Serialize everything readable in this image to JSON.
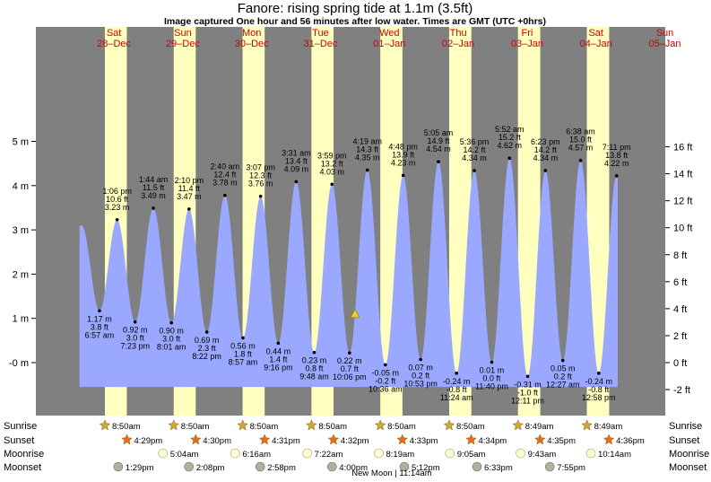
{
  "chart_data": {
    "type": "area",
    "title": "Fanore: rising  spring tide at 1.1m (3.5ft)",
    "subtitle": "Image captured One hour and 56 minutes after low water. Times are GMT (UTC +0hrs)",
    "ylim": [
      -0.75,
      5.25
    ],
    "yticks_left": [
      "-0 m",
      "1 m",
      "2 m",
      "3 m",
      "4 m",
      "5 m"
    ],
    "yticks_right": [
      "-2 ft",
      "0 ft",
      "2 ft",
      "4 ft",
      "6 ft",
      "8 ft",
      "10 ft",
      "12 ft",
      "14 ft",
      "16 ft"
    ],
    "days": [
      {
        "dow": "Sat",
        "date": "28–Dec"
      },
      {
        "dow": "Sun",
        "date": "29–Dec"
      },
      {
        "dow": "Mon",
        "date": "30–Dec"
      },
      {
        "dow": "Tue",
        "date": "31–Dec"
      },
      {
        "dow": "Wed",
        "date": "01–Jan"
      },
      {
        "dow": "Thu",
        "date": "02–Jan"
      },
      {
        "dow": "Fri",
        "date": "03–Jan"
      },
      {
        "dow": "Sat",
        "date": "04–Jan"
      },
      {
        "dow": "Sun",
        "date": "05–Jan"
      }
    ],
    "tides": [
      {
        "type": "low",
        "time": "6:57 am",
        "m": 1.17,
        "ft": "3.8 ft",
        "m_label": "1.17 m"
      },
      {
        "type": "high",
        "time": "1:06 pm",
        "m": 3.23,
        "ft": "10.6 ft",
        "m_label": "3.23 m"
      },
      {
        "type": "low",
        "time": "7:23 pm",
        "m": 0.92,
        "ft": "3.0 ft",
        "m_label": "0.92 m"
      },
      {
        "type": "high",
        "time": "1:44 am",
        "m": 3.49,
        "ft": "11.5 ft",
        "m_label": "3.49 m"
      },
      {
        "type": "low",
        "time": "8:01 am",
        "m": 0.9,
        "ft": "3.0 ft",
        "m_label": "0.90 m"
      },
      {
        "type": "high",
        "time": "2:10 pm",
        "m": 3.47,
        "ft": "11.4 ft",
        "m_label": "3.47 m"
      },
      {
        "type": "low",
        "time": "8:22 pm",
        "m": 0.69,
        "ft": "2.3 ft",
        "m_label": "0.69 m"
      },
      {
        "type": "high",
        "time": "2:40 am",
        "m": 3.78,
        "ft": "12.4 ft",
        "m_label": "3.78 m"
      },
      {
        "type": "low",
        "time": "8:57 am",
        "m": 0.56,
        "ft": "1.8 ft",
        "m_label": "0.56 m"
      },
      {
        "type": "high",
        "time": "3:07 pm",
        "m": 3.76,
        "ft": "12.3 ft",
        "m_label": "3.76 m"
      },
      {
        "type": "low",
        "time": "9:16 pm",
        "m": 0.44,
        "ft": "1.4 ft",
        "m_label": "0.44 m"
      },
      {
        "type": "high",
        "time": "3:31 am",
        "m": 4.09,
        "ft": "13.4 ft",
        "m_label": "4.09 m"
      },
      {
        "type": "low",
        "time": "9:48 am",
        "m": 0.23,
        "ft": "0.8 ft",
        "m_label": "0.23 m"
      },
      {
        "type": "high",
        "time": "3:59 pm",
        "m": 4.03,
        "ft": "13.2 ft",
        "m_label": "4.03 m"
      },
      {
        "type": "low",
        "time": "10:06 pm",
        "m": 0.22,
        "ft": "0.7 ft",
        "m_label": "0.22 m"
      },
      {
        "type": "high",
        "time": "4:19 am",
        "m": 4.35,
        "ft": "14.3 ft",
        "m_label": "4.35 m"
      },
      {
        "type": "low",
        "time": "10:36 am",
        "m": -0.05,
        "ft": "-0.2 ft",
        "m_label": "-0.05 m"
      },
      {
        "type": "high",
        "time": "4:48 pm",
        "m": 4.23,
        "ft": "13.9 ft",
        "m_label": "4.23 m"
      },
      {
        "type": "low",
        "time": "10:53 pm",
        "m": 0.07,
        "ft": "0.2 ft",
        "m_label": "0.07 m"
      },
      {
        "type": "high",
        "time": "5:05 am",
        "m": 4.54,
        "ft": "14.9 ft",
        "m_label": "4.54 m"
      },
      {
        "type": "low",
        "time": "11:24 am",
        "m": -0.24,
        "ft": "-0.8 ft",
        "m_label": "-0.24 m"
      },
      {
        "type": "high",
        "time": "5:36 pm",
        "m": 4.34,
        "ft": "14.2 ft",
        "m_label": "4.34 m"
      },
      {
        "type": "low",
        "time": "11:40 pm",
        "m": 0.01,
        "ft": "0.0 ft",
        "m_label": "0.01 m"
      },
      {
        "type": "high",
        "time": "5:52 am",
        "m": 4.62,
        "ft": "15.2 ft",
        "m_label": "4.62 m"
      },
      {
        "type": "low",
        "time": "12:11 pm",
        "m": -0.31,
        "ft": "-1.0 ft",
        "m_label": "-0.31 m"
      },
      {
        "type": "high",
        "time": "6:23 pm",
        "m": 4.34,
        "ft": "14.2 ft",
        "m_label": "4.34 m"
      },
      {
        "type": "low",
        "time": "12:27 am",
        "m": 0.05,
        "ft": "0.2 ft",
        "m_label": "0.05 m"
      },
      {
        "type": "high",
        "time": "6:38 am",
        "m": 4.57,
        "ft": "15.0 ft",
        "m_label": "4.57 m"
      },
      {
        "type": "low",
        "time": "12:58 pm",
        "m": -0.24,
        "ft": "-0.8 ft",
        "m_label": "-0.24 m"
      },
      {
        "type": "high",
        "time": "7:11 pm",
        "m": 4.22,
        "ft": "13.8 ft",
        "m_label": "4.22 m"
      }
    ],
    "current_level_m": 1.1,
    "row_labels": [
      "Sunrise",
      "Sunset",
      "Moonrise",
      "Moonset"
    ],
    "sunrise": [
      "8:50am",
      "8:50am",
      "8:50am",
      "8:50am",
      "8:50am",
      "8:50am",
      "8:49am",
      "8:49am"
    ],
    "sunset": [
      "4:29pm",
      "4:30pm",
      "4:31pm",
      "4:32pm",
      "4:33pm",
      "4:34pm",
      "4:35pm",
      "4:36pm"
    ],
    "moonrise": [
      "5:04am",
      "6:16am",
      "7:22am",
      "8:19am",
      "9:05am",
      "9:43am",
      "10:14am"
    ],
    "moonset": [
      "1:29pm",
      "2:08pm",
      "2:58pm",
      "4:00pm",
      "5:12pm",
      "6:33pm",
      "7:55pm"
    ],
    "new_moon": "New Moon | 11:14am",
    "colors": {
      "night": "#808080",
      "day": "#ffffc0",
      "water": "#9aa9ff",
      "day_label": "#cc0000",
      "sun_star": "#c9a93a",
      "sunset_star": "#e07020",
      "moon_disc": "#ffffcc",
      "moonset_disc": "#b0b0a0"
    }
  }
}
